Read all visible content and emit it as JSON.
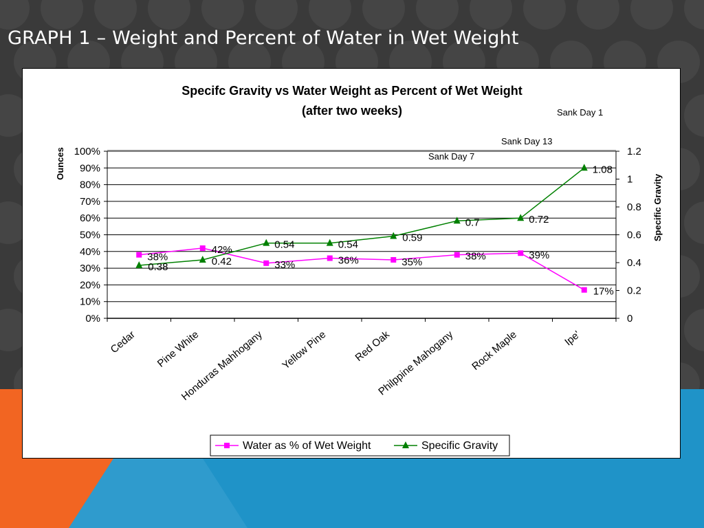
{
  "slide": {
    "title": "GRAPH 1 – Weight and Percent of Water in Wet Weight"
  },
  "colors": {
    "background_dark": "#3a3a3a",
    "circle_pattern": "#454545",
    "accent_orange": "#f26522",
    "accent_blue": "#1f93c8",
    "water_series": "#ff00ff",
    "gravity_series": "#008000"
  },
  "chart_data": {
    "type": "line",
    "title": "Specifc Gravity vs Water Weight as Percent of Wet Weight",
    "subtitle": "(after two weeks)",
    "y_left_label": "Ounces",
    "y_right_label": "Specific Gravity",
    "categories": [
      "Cedar",
      "Pine White",
      "Honduras Mahhogany",
      "Yellow Pine",
      "Red Oak",
      "Philppine Mahogany",
      "Rock Maple",
      "Ipe'"
    ],
    "y_left_range": [
      0,
      100
    ],
    "y_left_ticks": [
      "0%",
      "10%",
      "20%",
      "30%",
      "40%",
      "50%",
      "60%",
      "70%",
      "80%",
      "90%",
      "100%"
    ],
    "y_right_range": [
      0,
      1.2
    ],
    "y_right_ticks": [
      "0",
      "0.2",
      "0.4",
      "0.6",
      "0.8",
      "1",
      "1.2"
    ],
    "grid": "horizontal",
    "legend_position": "bottom",
    "series": [
      {
        "name": "Water as % of Wet Weight",
        "axis": "left",
        "marker": "square",
        "values": [
          38,
          42,
          33,
          36,
          35,
          38,
          39,
          17
        ],
        "labels": [
          "38%",
          "42%",
          "33%",
          "36%",
          "35%",
          "38%",
          "39%",
          "17%"
        ]
      },
      {
        "name": "Specific Gravity",
        "axis": "right",
        "marker": "triangle",
        "values": [
          0.38,
          0.42,
          0.54,
          0.54,
          0.59,
          0.7,
          0.72,
          1.08
        ],
        "labels": [
          "0.38",
          "0.42",
          "0.54",
          "0.54",
          "0.59",
          "0.7",
          "0.72",
          "1.08"
        ]
      }
    ],
    "annotations": [
      "Sank Day 1",
      "Sank Day 13",
      "Sank Day 7"
    ]
  }
}
